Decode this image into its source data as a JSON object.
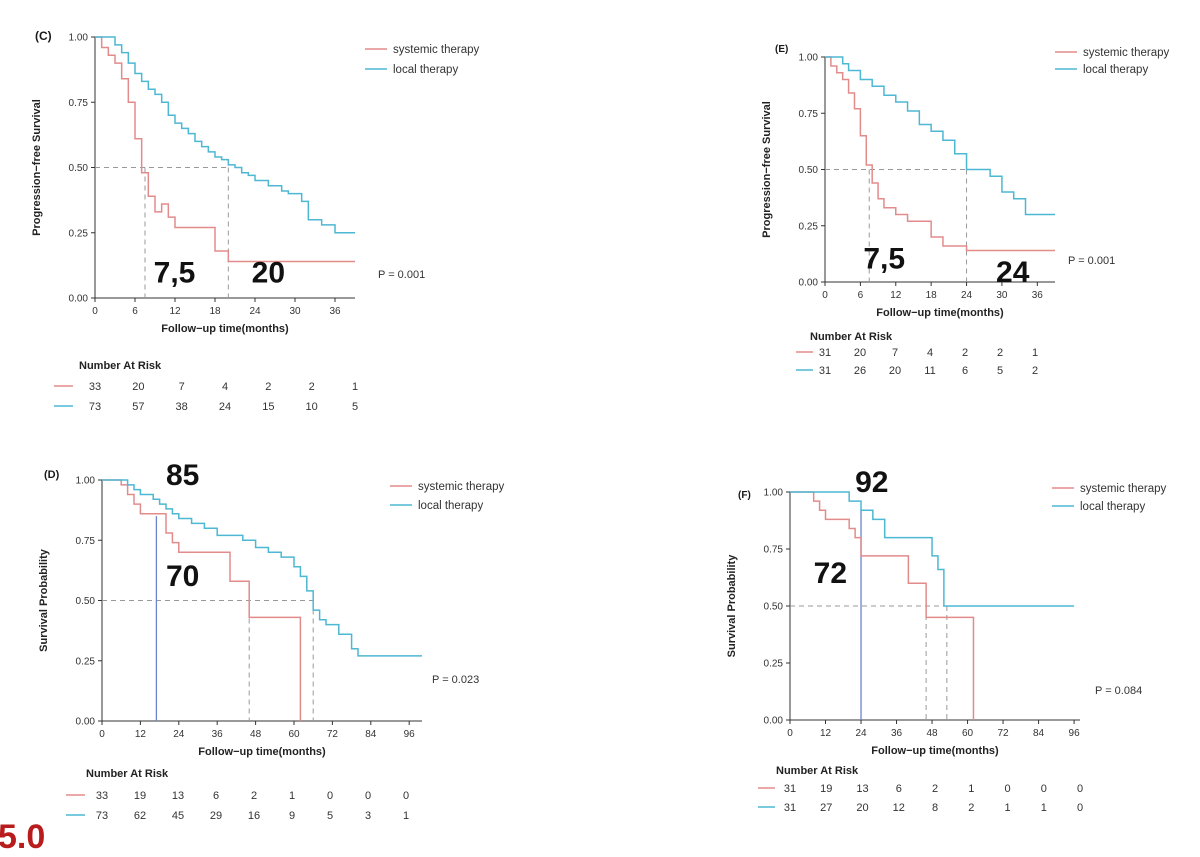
{
  "corner_text": "5.0",
  "chart_data": [
    {
      "id": "C",
      "type": "line",
      "panel_label": "(C)",
      "ylabel": "Progression−free Survival",
      "xlabel": "Follow−up time(months)",
      "xlim": [
        0,
        39
      ],
      "ylim": [
        0,
        1
      ],
      "xticks": [
        0,
        6,
        12,
        18,
        24,
        30,
        36
      ],
      "yticks": [
        0,
        0.25,
        0.5,
        0.75,
        1.0
      ],
      "ytick_labels": [
        "0.00",
        "0.25",
        "0.50",
        "0.75",
        "1.00"
      ],
      "legend": [
        "systemic therapy",
        "local therapy"
      ],
      "p_value": "P = 0.001",
      "series": [
        {
          "name": "systemic therapy",
          "color": "#e38b8b",
          "x": [
            0,
            1,
            2,
            3,
            4,
            5,
            6,
            7,
            8,
            9,
            10,
            11,
            12,
            14,
            16,
            18,
            20,
            39
          ],
          "y": [
            1.0,
            0.96,
            0.93,
            0.9,
            0.84,
            0.75,
            0.61,
            0.48,
            0.39,
            0.33,
            0.36,
            0.31,
            0.27,
            0.27,
            0.27,
            0.18,
            0.14,
            0.14
          ]
        },
        {
          "name": "local therapy",
          "color": "#4db8d3",
          "x": [
            0,
            2,
            3,
            4,
            5,
            6,
            7,
            8,
            9,
            10,
            11,
            12,
            13,
            14,
            15,
            16,
            17,
            18,
            19,
            20,
            21,
            22,
            23,
            24,
            26,
            27,
            28,
            29,
            30,
            31,
            32,
            34,
            35,
            36,
            39
          ],
          "y": [
            1.0,
            1.0,
            0.97,
            0.94,
            0.9,
            0.86,
            0.83,
            0.8,
            0.78,
            0.75,
            0.7,
            0.67,
            0.65,
            0.63,
            0.6,
            0.58,
            0.56,
            0.54,
            0.53,
            0.51,
            0.5,
            0.48,
            0.47,
            0.45,
            0.43,
            0.43,
            0.41,
            0.4,
            0.4,
            0.37,
            0.3,
            0.28,
            0.28,
            0.25,
            0.25
          ]
        }
      ],
      "medians": [
        7.5,
        20
      ],
      "annotations": [
        {
          "text": "7,5",
          "x": 8.8,
          "y": 0.06,
          "size": 30
        },
        {
          "text": "20",
          "x": 23.5,
          "y": 0.06,
          "size": 30
        }
      ],
      "risk": {
        "title": "Number At Risk",
        "rows": [
          {
            "color": "#e38b8b",
            "values": [
              "33",
              "20",
              "7",
              "4",
              "2",
              "2",
              "1"
            ]
          },
          {
            "color": "#4db8d3",
            "values": [
              "73",
              "57",
              "38",
              "24",
              "15",
              "10",
              "5"
            ]
          }
        ]
      }
    },
    {
      "id": "E",
      "type": "line",
      "panel_label": "(E)",
      "ylabel": "Progression−free Survival",
      "xlabel": "Follow−up time(months)",
      "xlim": [
        0,
        39
      ],
      "ylim": [
        0,
        1
      ],
      "xticks": [
        0,
        6,
        12,
        18,
        24,
        30,
        36
      ],
      "yticks": [
        0,
        0.25,
        0.5,
        0.75,
        1.0
      ],
      "ytick_labels": [
        "0.00",
        "0.25",
        "0.50",
        "0.75",
        "1.00"
      ],
      "legend": [
        "systemic therapy",
        "local therapy"
      ],
      "p_value": "P = 0.001",
      "series": [
        {
          "name": "systemic therapy",
          "color": "#e38b8b",
          "x": [
            0,
            1,
            2,
            3,
            4,
            5,
            6,
            7,
            8,
            9,
            10,
            12,
            14,
            16,
            18,
            20,
            24,
            39
          ],
          "y": [
            1.0,
            0.96,
            0.93,
            0.9,
            0.84,
            0.77,
            0.65,
            0.52,
            0.44,
            0.37,
            0.33,
            0.3,
            0.27,
            0.27,
            0.2,
            0.16,
            0.14,
            0.14
          ]
        },
        {
          "name": "local therapy",
          "color": "#4db8d3",
          "x": [
            0,
            2,
            3,
            4,
            6,
            8,
            10,
            12,
            14,
            16,
            18,
            20,
            22,
            24,
            26,
            28,
            30,
            32,
            34,
            36,
            39
          ],
          "y": [
            1.0,
            1.0,
            0.97,
            0.94,
            0.9,
            0.87,
            0.83,
            0.8,
            0.76,
            0.7,
            0.67,
            0.63,
            0.57,
            0.5,
            0.5,
            0.47,
            0.4,
            0.37,
            0.3,
            0.3,
            0.3
          ]
        }
      ],
      "medians": [
        7.5,
        24
      ],
      "annotations": [
        {
          "text": "7,5",
          "x": 6.5,
          "y": 0.06,
          "size": 30
        },
        {
          "text": "24",
          "x": 29,
          "y": 0.0,
          "size": 30
        }
      ],
      "risk": {
        "title": "Number At Risk",
        "rows": [
          {
            "color": "#e38b8b",
            "values": [
              "31",
              "20",
              "7",
              "4",
              "2",
              "2",
              "1"
            ]
          },
          {
            "color": "#4db8d3",
            "values": [
              "31",
              "26",
              "20",
              "11",
              "6",
              "5",
              "2"
            ]
          }
        ]
      }
    },
    {
      "id": "D",
      "type": "line",
      "panel_label": "(D)",
      "ylabel": "Survival Probability",
      "xlabel": "Follow−up time(months)",
      "xlim": [
        0,
        100
      ],
      "ylim": [
        0,
        1
      ],
      "xticks": [
        0,
        12,
        24,
        36,
        48,
        60,
        72,
        84,
        96
      ],
      "yticks": [
        0,
        0.25,
        0.5,
        0.75,
        1.0
      ],
      "ytick_labels": [
        "0.00",
        "0.25",
        "0.50",
        "0.75",
        "1.00"
      ],
      "legend": [
        "systemic therapy",
        "local therapy"
      ],
      "p_value": "P = 0.023",
      "series": [
        {
          "name": "systemic therapy",
          "color": "#e38b8b",
          "x": [
            0,
            6,
            8,
            10,
            12,
            14,
            16,
            18,
            20,
            22,
            24,
            30,
            36,
            40,
            44,
            46,
            48,
            50,
            60,
            62
          ],
          "y": [
            1.0,
            0.98,
            0.94,
            0.9,
            0.86,
            0.86,
            0.86,
            0.86,
            0.78,
            0.74,
            0.7,
            0.7,
            0.7,
            0.58,
            0.58,
            0.43,
            0.43,
            0.43,
            0.43,
            0.0
          ]
        },
        {
          "name": "local therapy",
          "color": "#4db8d3",
          "x": [
            0,
            6,
            8,
            10,
            12,
            14,
            16,
            18,
            20,
            22,
            24,
            28,
            32,
            36,
            40,
            44,
            48,
            52,
            56,
            60,
            62,
            64,
            66,
            68,
            70,
            74,
            76,
            78,
            80,
            84,
            96,
            100
          ],
          "y": [
            1.0,
            1.0,
            0.98,
            0.96,
            0.94,
            0.94,
            0.92,
            0.9,
            0.88,
            0.86,
            0.84,
            0.82,
            0.8,
            0.77,
            0.77,
            0.75,
            0.72,
            0.7,
            0.68,
            0.64,
            0.6,
            0.54,
            0.46,
            0.42,
            0.4,
            0.36,
            0.36,
            0.3,
            0.27,
            0.27,
            0.27,
            0.27
          ]
        }
      ],
      "medians": [
        46,
        66
      ],
      "vlines": [
        {
          "x": 17,
          "y": 0.85,
          "color": "#6a86c8"
        }
      ],
      "annotations": [
        {
          "text": "85",
          "x": 20,
          "y": 0.98,
          "size": 30
        },
        {
          "text": "70",
          "x": 20,
          "y": 0.56,
          "size": 30
        }
      ],
      "risk": {
        "title": "Number At Risk",
        "rows": [
          {
            "color": "#e38b8b",
            "values": [
              "33",
              "19",
              "13",
              "6",
              "2",
              "1",
              "0",
              "0",
              "0"
            ]
          },
          {
            "color": "#4db8d3",
            "values": [
              "73",
              "62",
              "45",
              "29",
              "16",
              "9",
              "5",
              "3",
              "1"
            ]
          }
        ]
      }
    },
    {
      "id": "F",
      "type": "line",
      "panel_label": "(F)",
      "ylabel": "Survival Probability",
      "xlabel": "Follow−up time(months)",
      "xlim": [
        0,
        98
      ],
      "ylim": [
        0,
        1
      ],
      "xticks": [
        0,
        12,
        24,
        36,
        48,
        60,
        72,
        84,
        96
      ],
      "yticks": [
        0,
        0.25,
        0.5,
        0.75,
        1.0
      ],
      "ytick_labels": [
        "0.00",
        "0.25",
        "0.50",
        "0.75",
        "1.00"
      ],
      "legend": [
        "systemic therapy",
        "local therapy"
      ],
      "p_value": "P = 0.084",
      "series": [
        {
          "name": "systemic therapy",
          "color": "#e38b8b",
          "x": [
            0,
            8,
            10,
            12,
            14,
            18,
            20,
            22,
            24,
            30,
            36,
            40,
            44,
            46,
            48,
            52,
            56,
            60,
            62
          ],
          "y": [
            1.0,
            0.96,
            0.92,
            0.88,
            0.88,
            0.88,
            0.84,
            0.8,
            0.72,
            0.72,
            0.72,
            0.6,
            0.6,
            0.45,
            0.45,
            0.45,
            0.45,
            0.45,
            0.0
          ]
        },
        {
          "name": "local therapy",
          "color": "#4db8d3",
          "x": [
            0,
            8,
            12,
            16,
            20,
            22,
            24,
            26,
            28,
            32,
            36,
            40,
            46,
            48,
            50,
            52,
            54,
            60,
            72,
            84,
            96
          ],
          "y": [
            1.0,
            1.0,
            1.0,
            1.0,
            0.96,
            0.96,
            0.92,
            0.92,
            0.88,
            0.8,
            0.8,
            0.8,
            0.8,
            0.72,
            0.66,
            0.5,
            0.5,
            0.5,
            0.5,
            0.5,
            0.5
          ]
        }
      ],
      "medians": [
        46,
        53
      ],
      "vlines": [
        {
          "x": 24,
          "y": 0.92,
          "color": "#6a86c8"
        }
      ],
      "annotations": [
        {
          "text": "92",
          "x": 22,
          "y": 1.0,
          "size": 30
        },
        {
          "text": "72",
          "x": 8,
          "y": 0.6,
          "size": 30
        }
      ],
      "risk": {
        "title": "Number At Risk",
        "rows": [
          {
            "color": "#e38b8b",
            "values": [
              "31",
              "19",
              "13",
              "6",
              "2",
              "1",
              "0",
              "0",
              "0"
            ]
          },
          {
            "color": "#4db8d3",
            "values": [
              "31",
              "27",
              "20",
              "12",
              "8",
              "2",
              "1",
              "1",
              "0"
            ]
          }
        ]
      }
    }
  ]
}
